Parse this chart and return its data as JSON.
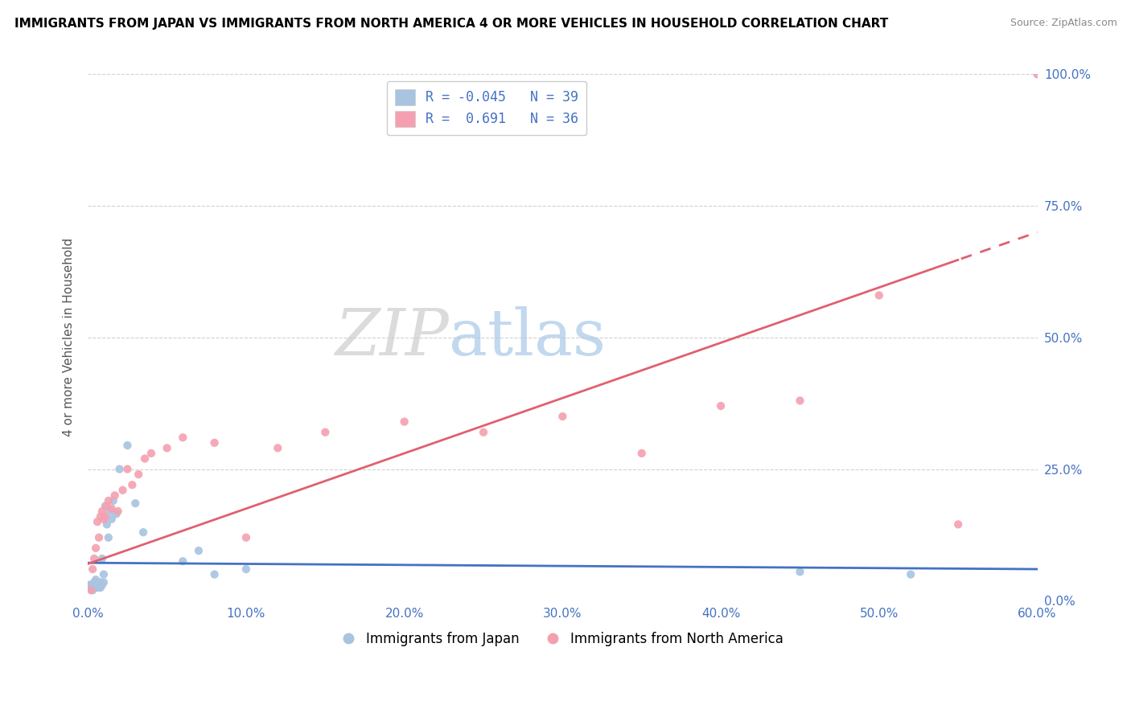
{
  "title": "IMMIGRANTS FROM JAPAN VS IMMIGRANTS FROM NORTH AMERICA 4 OR MORE VEHICLES IN HOUSEHOLD CORRELATION CHART",
  "source": "Source: ZipAtlas.com",
  "ylabel": "4 or more Vehicles in Household",
  "legend_label1": "Immigrants from Japan",
  "legend_label2": "Immigrants from North America",
  "R1": -0.045,
  "N1": 39,
  "R2": 0.691,
  "N2": 36,
  "color1": "#a8c4e0",
  "color2": "#f4a0b0",
  "trendline1_color": "#4472c4",
  "trendline2_color": "#e06070",
  "xlim": [
    0.0,
    0.6
  ],
  "ylim": [
    0.0,
    1.0
  ],
  "xtick_vals": [
    0.0,
    0.1,
    0.2,
    0.3,
    0.4,
    0.5,
    0.6
  ],
  "xtick_labels": [
    "0.0%",
    "10.0%",
    "20.0%",
    "30.0%",
    "40.0%",
    "50.0%",
    "60.0%"
  ],
  "ytick_vals": [
    0.0,
    0.25,
    0.5,
    0.75,
    1.0
  ],
  "ytick_labels": [
    "0.0%",
    "25.0%",
    "50.0%",
    "75.0%",
    "100.0%"
  ],
  "watermark_zip": "ZIP",
  "watermark_atlas": "atlas",
  "japan_x": [
    0.001,
    0.002,
    0.002,
    0.003,
    0.003,
    0.003,
    0.004,
    0.004,
    0.004,
    0.005,
    0.005,
    0.005,
    0.006,
    0.006,
    0.007,
    0.007,
    0.008,
    0.008,
    0.009,
    0.009,
    0.01,
    0.01,
    0.011,
    0.012,
    0.013,
    0.014,
    0.015,
    0.016,
    0.018,
    0.02,
    0.025,
    0.03,
    0.035,
    0.06,
    0.07,
    0.08,
    0.1,
    0.45,
    0.52
  ],
  "japan_y": [
    0.03,
    0.025,
    0.03,
    0.02,
    0.025,
    0.03,
    0.025,
    0.03,
    0.035,
    0.03,
    0.035,
    0.04,
    0.025,
    0.03,
    0.025,
    0.03,
    0.025,
    0.035,
    0.03,
    0.08,
    0.035,
    0.05,
    0.18,
    0.145,
    0.12,
    0.17,
    0.155,
    0.19,
    0.165,
    0.25,
    0.295,
    0.185,
    0.13,
    0.075,
    0.095,
    0.05,
    0.06,
    0.055,
    0.05
  ],
  "na_x": [
    0.002,
    0.003,
    0.004,
    0.005,
    0.006,
    0.007,
    0.008,
    0.009,
    0.01,
    0.011,
    0.012,
    0.013,
    0.015,
    0.017,
    0.019,
    0.022,
    0.025,
    0.028,
    0.032,
    0.036,
    0.04,
    0.05,
    0.06,
    0.08,
    0.1,
    0.12,
    0.15,
    0.2,
    0.25,
    0.3,
    0.35,
    0.4,
    0.45,
    0.5,
    0.55,
    0.6
  ],
  "na_y": [
    0.02,
    0.06,
    0.08,
    0.1,
    0.15,
    0.12,
    0.16,
    0.17,
    0.155,
    0.16,
    0.18,
    0.19,
    0.175,
    0.2,
    0.17,
    0.21,
    0.25,
    0.22,
    0.24,
    0.27,
    0.28,
    0.29,
    0.31,
    0.3,
    0.12,
    0.29,
    0.32,
    0.34,
    0.32,
    0.35,
    0.28,
    0.37,
    0.38,
    0.58,
    0.145,
    1.0
  ]
}
